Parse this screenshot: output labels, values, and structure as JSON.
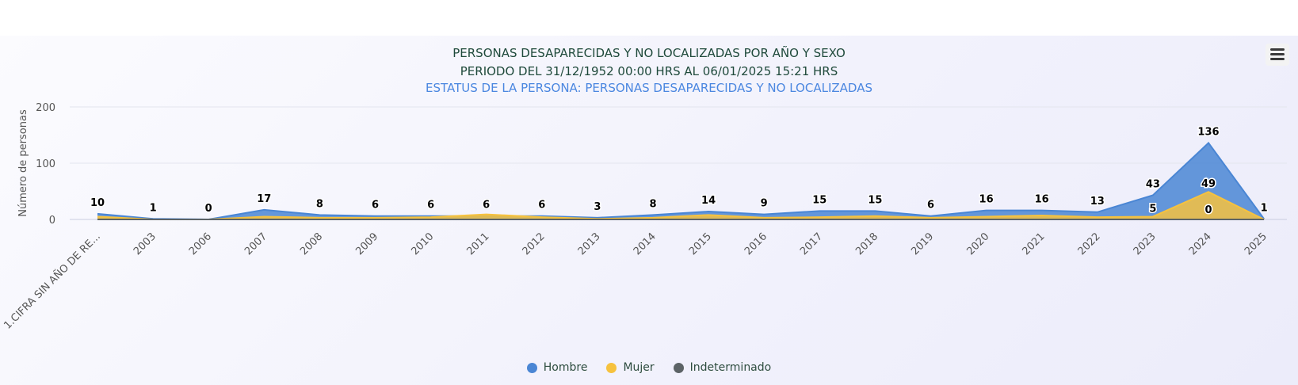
{
  "chart_data": {
    "type": "area",
    "title": "PERSONAS DESAPARECIDAS Y NO LOCALIZADAS POR AÑO Y SEXO",
    "subtitle": "PERIODO DEL 31/12/1952 00:00 HRS AL 06/01/2025 15:21 HRS",
    "subtitle2": "ESTATUS DE LA PERSONA: PERSONAS DESAPARECIDAS Y NO LOCALIZADAS",
    "ylabel": "Número de personas",
    "xlabel": "",
    "ylim": [
      0,
      200
    ],
    "yticks": [
      0,
      100,
      200
    ],
    "grid": true,
    "legend_position": "bottom-center",
    "categories": [
      "1.CIFRA SIN AÑO DE RE...",
      "2003",
      "2006",
      "2007",
      "2008",
      "2009",
      "2010",
      "2011",
      "2012",
      "2013",
      "2014",
      "2015",
      "2016",
      "2017",
      "2018",
      "2019",
      "2020",
      "2021",
      "2022",
      "2023",
      "2024",
      "2025"
    ],
    "series": [
      {
        "name": "Hombre",
        "color": "#4a86d4",
        "values": [
          10,
          1,
          0,
          17,
          8,
          6,
          6,
          6,
          6,
          3,
          8,
          14,
          9,
          15,
          15,
          6,
          16,
          16,
          13,
          43,
          136,
          1
        ],
        "labels": [
          "10",
          "1",
          "0",
          "17",
          "8",
          "6",
          "6",
          "6",
          "6",
          "3",
          "8",
          "14",
          "9",
          "15",
          "15",
          "6",
          "16",
          "16",
          "13",
          "43",
          "136",
          "1"
        ]
      },
      {
        "name": "Mujer",
        "color": "#f6c23e",
        "values": [
          5,
          0,
          0,
          5,
          3,
          3,
          4,
          9,
          4,
          1,
          3,
          8,
          3,
          4,
          6,
          3,
          5,
          7,
          4,
          5,
          49,
          0
        ],
        "labels": {
          "19": "5",
          "20": "49"
        }
      },
      {
        "name": "Indeterminado",
        "color": "#5c6366",
        "values": [
          0,
          0,
          0,
          0,
          0,
          0,
          0,
          0,
          0,
          0,
          0,
          0,
          0,
          0,
          0,
          0,
          0,
          0,
          0,
          0,
          0,
          0
        ],
        "labels": {
          "20": "0"
        }
      }
    ]
  }
}
